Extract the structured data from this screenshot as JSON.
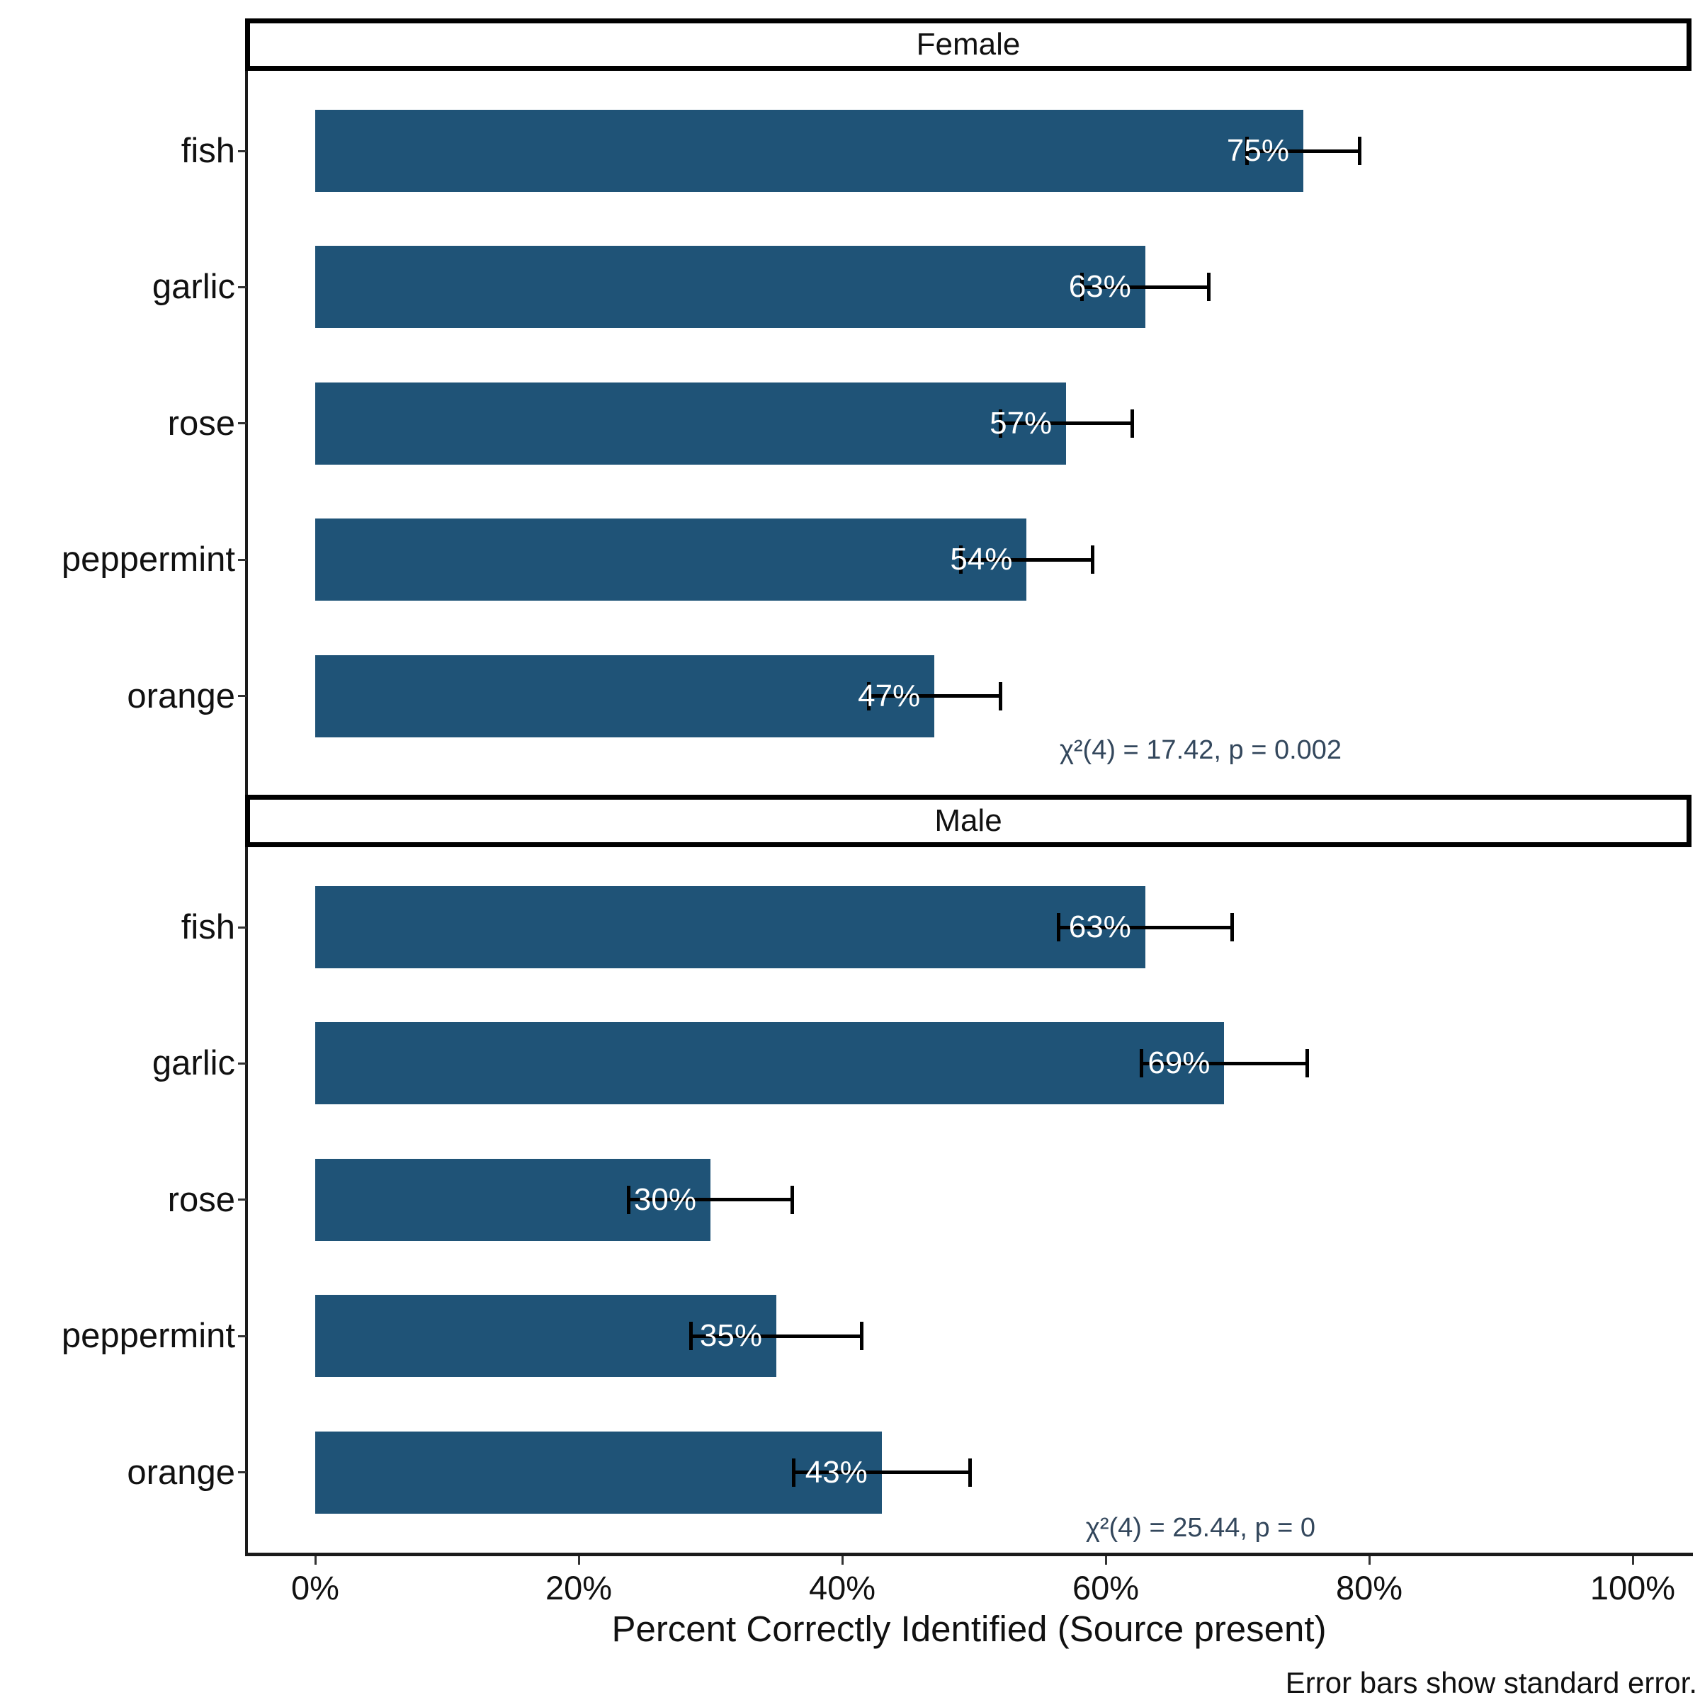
{
  "chart_data": {
    "type": "bar",
    "orientation": "horizontal",
    "title": "",
    "xlabel": "Percent Correctly Identified (Source present)",
    "caption": "Error bars show standard error.",
    "xlim": [
      0,
      104
    ],
    "grid": false,
    "legend": null,
    "error_bars": "standard error",
    "x_ticks": [
      {
        "value": 0,
        "label": "0%"
      },
      {
        "value": 20,
        "label": "20%"
      },
      {
        "value": 40,
        "label": "40%"
      },
      {
        "value": 60,
        "label": "60%"
      },
      {
        "value": 80,
        "label": "80%"
      },
      {
        "value": 100,
        "label": "100%"
      }
    ],
    "categories": [
      "fish",
      "garlic",
      "rose",
      "peppermint",
      "orange"
    ],
    "facets": [
      {
        "label": "Female",
        "annotation": "χ²(4) = 17.42, p = 0.002",
        "bars": [
          {
            "category": "fish",
            "value": 75,
            "se": 4.3,
            "label": "75%"
          },
          {
            "category": "garlic",
            "value": 63,
            "se": 4.8,
            "label": "63%"
          },
          {
            "category": "rose",
            "value": 57,
            "se": 5.0,
            "label": "57%"
          },
          {
            "category": "peppermint",
            "value": 54,
            "se": 5.0,
            "label": "54%"
          },
          {
            "category": "orange",
            "value": 47,
            "se": 5.0,
            "label": "47%"
          }
        ]
      },
      {
        "label": "Male",
        "annotation": "χ²(4) = 25.44, p = 0",
        "bars": [
          {
            "category": "fish",
            "value": 63,
            "se": 6.6,
            "label": "63%"
          },
          {
            "category": "garlic",
            "value": 69,
            "se": 6.3,
            "label": "69%"
          },
          {
            "category": "rose",
            "value": 30,
            "se": 6.2,
            "label": "30%"
          },
          {
            "category": "peppermint",
            "value": 35,
            "se": 6.5,
            "label": "35%"
          },
          {
            "category": "orange",
            "value": 43,
            "se": 6.7,
            "label": "43%"
          }
        ]
      }
    ],
    "colors": {
      "bar": "#1F5377",
      "annotation": "#33475C",
      "axis": "#1a1a1a",
      "bar_label": "#ffffff"
    }
  }
}
